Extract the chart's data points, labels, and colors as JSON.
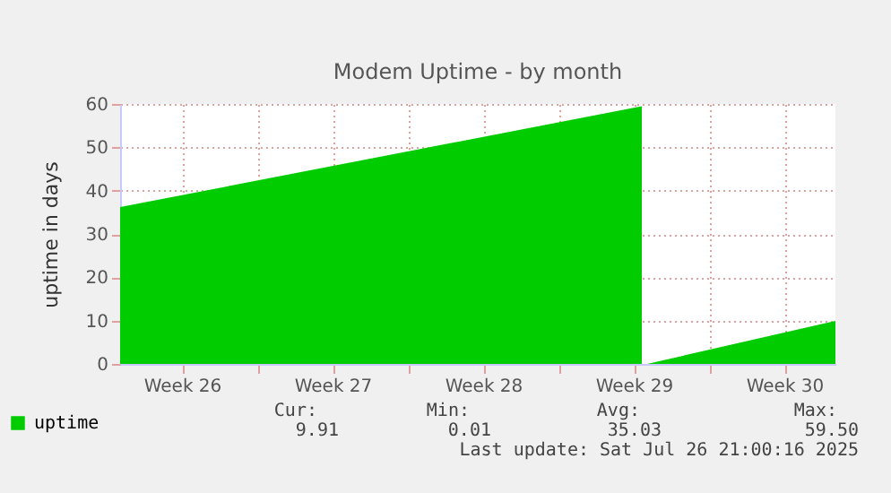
{
  "chart_data": {
    "type": "area",
    "title": "Modem Uptime - by month",
    "ylabel": "uptime in days",
    "x": [
      "2025-06-23T15:00",
      "2025-07-17T21:00",
      "2025-07-17T23:00",
      "2025-07-18T03:00",
      "2025-07-26T21:00"
    ],
    "series": [
      {
        "name": "uptime",
        "color": "#00cc00",
        "values": [
          36.2,
          59.5,
          null,
          0.01,
          9.91
        ]
      }
    ],
    "xlim": [
      "2025-06-23T15:00",
      "2025-07-26T21:00"
    ],
    "xticks": [
      {
        "value": "2025-06-26T12:00",
        "label": "Week 26"
      },
      {
        "value": "2025-06-30T00:00",
        "label": null
      },
      {
        "value": "2025-07-03T12:00",
        "label": "Week 27"
      },
      {
        "value": "2025-07-07T00:00",
        "label": null
      },
      {
        "value": "2025-07-10T12:00",
        "label": "Week 28"
      },
      {
        "value": "2025-07-14T00:00",
        "label": null
      },
      {
        "value": "2025-07-17T12:00",
        "label": "Week 29"
      },
      {
        "value": "2025-07-21T00:00",
        "label": null
      },
      {
        "value": "2025-07-24T12:00",
        "label": "Week 30"
      }
    ],
    "ylim": [
      0,
      60
    ],
    "yticks": [
      0,
      10,
      20,
      30,
      40,
      50,
      60
    ],
    "grid": true,
    "legend": "bottom left",
    "annotations": [
      "Cur:",
      "Min:",
      "Avg:",
      "Max:",
      "9.91",
      "0.01",
      "35.03",
      "59.50",
      "Last update: Sat Jul 26 21:00:16 2025"
    ]
  }
}
